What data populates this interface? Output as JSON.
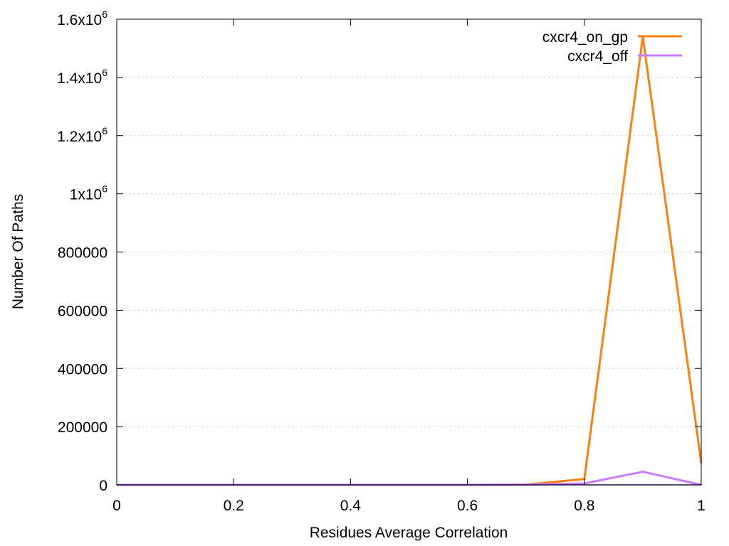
{
  "chart_data": {
    "type": "line",
    "title": "",
    "xlabel": "Residues Average Correlation",
    "ylabel": "Number Of Paths",
    "xlim": [
      0,
      1
    ],
    "ylim": [
      0,
      1600000
    ],
    "grid": true,
    "legend_position": "top-right",
    "x_ticks": [
      {
        "value": 0,
        "label": "0"
      },
      {
        "value": 0.2,
        "label": "0.2"
      },
      {
        "value": 0.4,
        "label": "0.4"
      },
      {
        "value": 0.6,
        "label": "0.6"
      },
      {
        "value": 0.8,
        "label": "0.8"
      },
      {
        "value": 1,
        "label": "1"
      }
    ],
    "y_ticks": [
      {
        "value": 0,
        "label": "0"
      },
      {
        "value": 200000,
        "label": "200000"
      },
      {
        "value": 400000,
        "label": "400000"
      },
      {
        "value": 600000,
        "label": "600000"
      },
      {
        "value": 800000,
        "label": "800000"
      },
      {
        "value": 1000000,
        "label": "1x10",
        "sup": "6"
      },
      {
        "value": 1200000,
        "label": "1.2x10",
        "sup": "6"
      },
      {
        "value": 1400000,
        "label": "1.4x10",
        "sup": "6"
      },
      {
        "value": 1600000,
        "label": "1.6x10",
        "sup": "6"
      }
    ],
    "x": [
      0,
      0.1,
      0.2,
      0.3,
      0.4,
      0.5,
      0.6,
      0.7,
      0.8,
      0.9,
      1.0
    ],
    "series": [
      {
        "name": "cxcr4_on_gp",
        "color": "#ff7f0e",
        "values": [
          0,
          0,
          0,
          0,
          0,
          0,
          0,
          1000,
          20000,
          1540000,
          75000
        ]
      },
      {
        "name": "cxcr4_off",
        "color": "#c77cff",
        "values": [
          0,
          0,
          0,
          0,
          0,
          0,
          0,
          500,
          5000,
          45000,
          0
        ]
      }
    ],
    "baseline_color": "#5b1fa8"
  }
}
